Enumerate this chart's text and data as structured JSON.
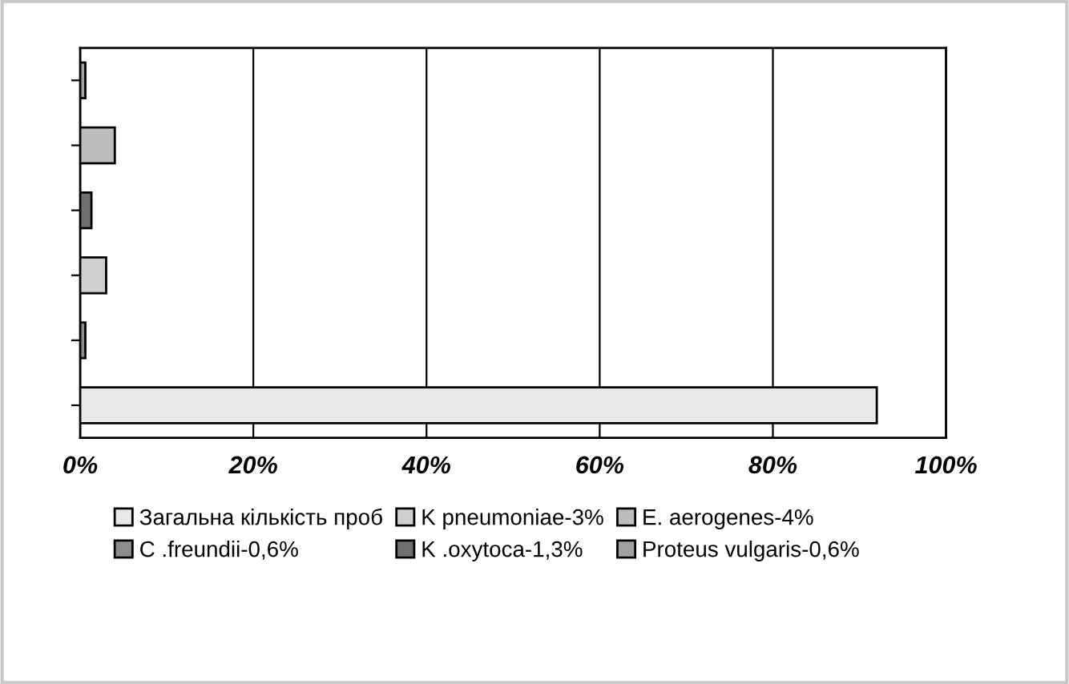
{
  "chart_data": {
    "type": "bar",
    "orientation": "horizontal",
    "categories": [
      null,
      null,
      null,
      null,
      null,
      null
    ],
    "series": [
      {
        "name": "Загальна кількість проб",
        "color": "#e8e8e8",
        "values": [
          null,
          null,
          null,
          null,
          null,
          92
        ]
      },
      {
        "name": "C .freundii-0,6%",
        "color": "#8c8c8c",
        "values": [
          null,
          null,
          null,
          null,
          0.6,
          null
        ]
      },
      {
        "name": "K pneumoniae-3%",
        "color": "#d0d0d0",
        "values": [
          null,
          null,
          null,
          3,
          null,
          null
        ]
      },
      {
        "name": "K .oxytoca-1,3%",
        "color": "#707070",
        "values": [
          null,
          null,
          1.3,
          null,
          null,
          null
        ]
      },
      {
        "name": "E. aerogenes-4%",
        "color": "#bdbdbd",
        "values": [
          null,
          4,
          null,
          null,
          null,
          null
        ]
      },
      {
        "name": "Proteus vulgaris-0,6%",
        "color": "#a0a0a0",
        "values": [
          0.6,
          null,
          null,
          null,
          null,
          null
        ]
      }
    ],
    "xlim": [
      0,
      100
    ],
    "xticks": [
      {
        "value": 0,
        "label": "0%"
      },
      {
        "value": 20,
        "label": "20%"
      },
      {
        "value": 40,
        "label": "40%"
      },
      {
        "value": 60,
        "label": "60%"
      },
      {
        "value": 80,
        "label": "80%"
      },
      {
        "value": 100,
        "label": "100%"
      }
    ],
    "grid": "x",
    "legend": "bottom"
  }
}
